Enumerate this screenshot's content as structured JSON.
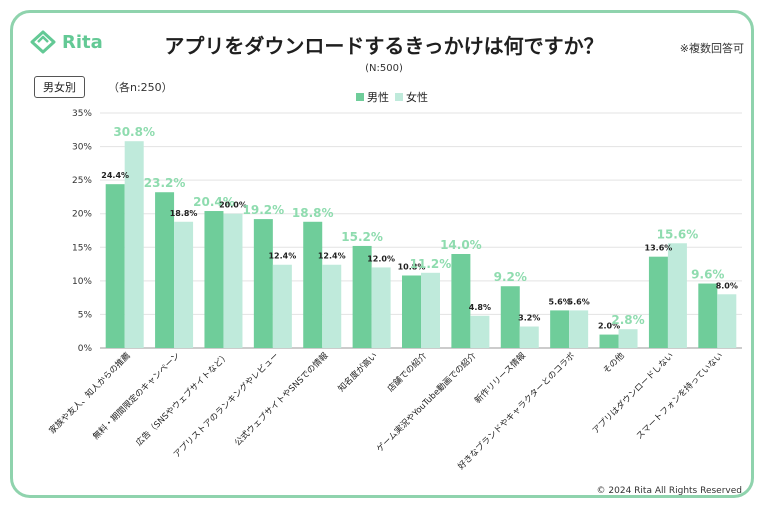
{
  "brand": {
    "name": "Rita"
  },
  "title": "アプリをダウンロードするきっかけは何ですか？",
  "subtitle": "(N:500)",
  "note": "※複数回答可",
  "segment_label": "男女別",
  "sample_label": "（各n:250）",
  "copyright": "© 2024 Rita All Rights Reserved",
  "colors": {
    "male": "#6fcd9a",
    "female": "#bfeadb",
    "frame": "#8fd3ad",
    "highlight": "#8fdcaf"
  },
  "chart_data": {
    "type": "bar",
    "categories": [
      "家族や友人、知人からの推薦",
      "無料・期間限定のキャンペーン",
      "広告（SNSやウェブサイトなど）",
      "アプリストアのランキングやレビュー",
      "公式ウェブサイトやSNSでの情報",
      "知名度が高い",
      "店舗での紹介",
      "ゲーム実況やYouTube動画での紹介",
      "新作リリース情報",
      "好きなブランドやキャラクターとのコラボ",
      "その他",
      "アプリはダウンロードしない",
      "スマートフォンを持っていない"
    ],
    "series": [
      {
        "name": "男性",
        "values": [
          24.4,
          23.2,
          20.4,
          19.2,
          18.8,
          15.2,
          10.8,
          14.0,
          9.2,
          5.6,
          2.0,
          13.6,
          9.6
        ]
      },
      {
        "name": "女性",
        "values": [
          30.8,
          18.8,
          20.0,
          12.4,
          12.4,
          12.0,
          11.2,
          4.8,
          3.2,
          5.6,
          2.8,
          15.6,
          8.0
        ]
      }
    ],
    "value_labels": {
      "male": [
        "24.4%",
        "23.2%",
        "20.4%",
        "19.2%",
        "18.8%",
        "15.2%",
        "10.8%",
        "14.0%",
        "9.2%",
        "5.6%",
        "2.0%",
        "13.6%",
        "9.6%"
      ],
      "female": [
        "30.8%",
        "18.8%",
        "20.0%",
        "12.4%",
        "12.4%",
        "12.0%",
        "11.2%",
        "4.8%",
        "3.2%",
        "5.6%",
        "2.8%",
        "15.6%",
        "8.0%"
      ]
    },
    "highlighted": [
      [
        "female"
      ],
      [
        "male"
      ],
      [
        "male"
      ],
      [
        "male"
      ],
      [
        "male"
      ],
      [
        "male"
      ],
      [
        "female"
      ],
      [
        "male"
      ],
      [
        "male"
      ],
      [],
      [
        "female"
      ],
      [
        "female"
      ],
      [
        "male"
      ]
    ],
    "yticks": [
      "0%",
      "5%",
      "10%",
      "15%",
      "20%",
      "25%",
      "30%",
      "35%"
    ],
    "ylim": [
      0,
      35
    ],
    "grid": true,
    "legend_position": "top-center"
  }
}
